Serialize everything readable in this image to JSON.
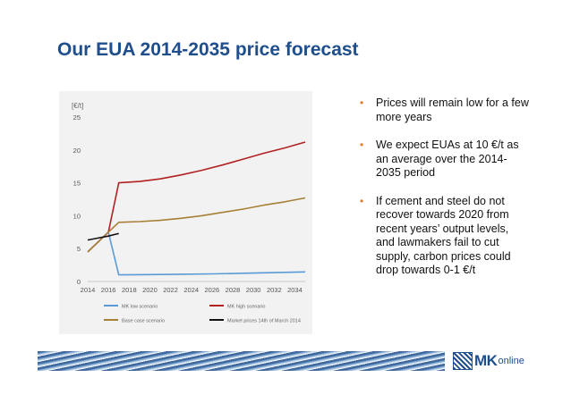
{
  "slide": {
    "title": "Our EUA 2014-2035 price forecast"
  },
  "bullets": [
    {
      "text": "Prices will remain low for a few more years"
    },
    {
      "text": "We expect EUAs at 10 €/t as an average over the 2014-2035 period"
    },
    {
      "text": "If cement and steel do not recover towards 2020 from recent years’ output levels, and lawmakers fail to cut supply, carbon prices could drop towards 0-1 €/t"
    }
  ],
  "logo": {
    "mk": "MK",
    "online": "online"
  },
  "colors": {
    "title": "#1f4e8c",
    "bullet": "#e07b26",
    "low": "#5b9bd5",
    "high": "#b22222",
    "base": "#a68035",
    "market": "#111111"
  },
  "chart_data": {
    "type": "line",
    "title": "",
    "xlabel": "",
    "ylabel": "[€/t]",
    "xlim": [
      2014,
      2035
    ],
    "ylim": [
      0,
      25
    ],
    "x_ticks": [
      2014,
      2016,
      2018,
      2020,
      2022,
      2024,
      2026,
      2028,
      2030,
      2032,
      2034
    ],
    "y_ticks": [
      0,
      5,
      10,
      15,
      20,
      25
    ],
    "grid": false,
    "legend_position": "bottom",
    "series": [
      {
        "name": "MK low scenario",
        "color": "#5b9bd5",
        "points": [
          [
            2014,
            4.5
          ],
          [
            2016,
            7.5
          ],
          [
            2017,
            1.0
          ],
          [
            2020,
            1.05
          ],
          [
            2023,
            1.1
          ],
          [
            2026,
            1.15
          ],
          [
            2029,
            1.25
          ],
          [
            2032,
            1.35
          ],
          [
            2035,
            1.45
          ]
        ]
      },
      {
        "name": "MK high scenario",
        "color": "#b22222",
        "points": [
          [
            2014,
            4.5
          ],
          [
            2016,
            7.5
          ],
          [
            2017,
            15.0
          ],
          [
            2019,
            15.2
          ],
          [
            2021,
            15.6
          ],
          [
            2023,
            16.2
          ],
          [
            2025,
            16.9
          ],
          [
            2027,
            17.7
          ],
          [
            2029,
            18.6
          ],
          [
            2031,
            19.5
          ],
          [
            2033,
            20.3
          ],
          [
            2035,
            21.2
          ]
        ]
      },
      {
        "name": "Base case scenario",
        "color": "#a68035",
        "points": [
          [
            2014,
            4.5
          ],
          [
            2016,
            7.5
          ],
          [
            2017,
            9.0
          ],
          [
            2019,
            9.1
          ],
          [
            2021,
            9.3
          ],
          [
            2023,
            9.6
          ],
          [
            2025,
            10.0
          ],
          [
            2027,
            10.5
          ],
          [
            2029,
            11.0
          ],
          [
            2031,
            11.6
          ],
          [
            2033,
            12.1
          ],
          [
            2035,
            12.7
          ]
        ]
      },
      {
        "name": "Market prices 14th of March 2014",
        "color": "#111111",
        "points": [
          [
            2014,
            6.3
          ],
          [
            2015,
            6.6
          ],
          [
            2016,
            6.9
          ],
          [
            2017,
            7.3
          ]
        ]
      }
    ]
  }
}
